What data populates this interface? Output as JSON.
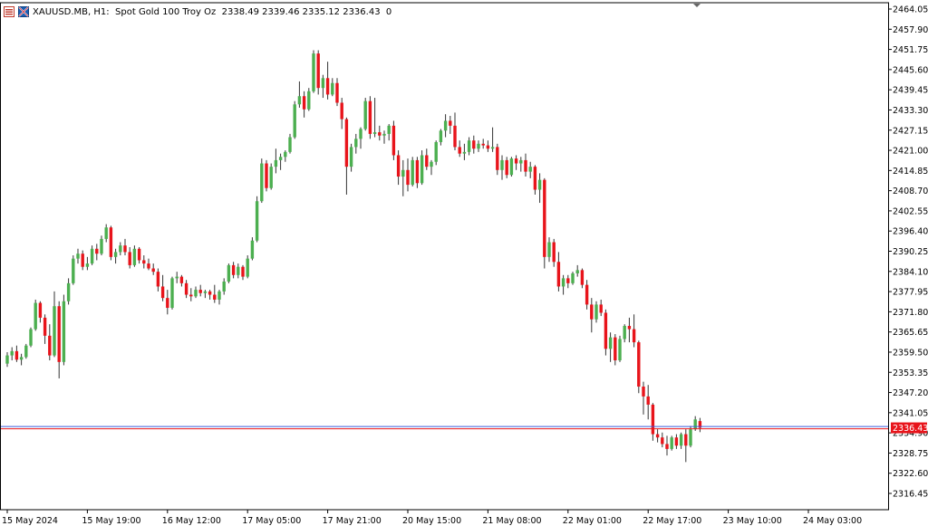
{
  "header": {
    "symbol": "XAUUSD.MB",
    "timeframe": "H1",
    "description": "Spot Gold 100 Troy Oz",
    "ohlc": "2338.49 2339.46 2335.12 2336.43",
    "volume": "0"
  },
  "colors": {
    "bull": "#4caf50",
    "bear": "#e8141b",
    "wick": "#333333",
    "price_line_red": "#e8141b",
    "price_line_blue": "#3b5bdb",
    "grid_axis": "#000000"
  },
  "icons": [
    "chart-list-icon",
    "symbol-flag-icon"
  ],
  "chart_data": {
    "type": "candlestick",
    "timeframe": "H1",
    "ylim": [
      2312.5,
      2465.0
    ],
    "grid": false,
    "current_price": 2336.43,
    "current_price_label": "2336.43",
    "ytick_labels": [
      "2464.05",
      "2457.90",
      "2451.75",
      "2445.60",
      "2439.45",
      "2433.30",
      "2427.15",
      "2421.00",
      "2414.85",
      "2408.70",
      "2402.55",
      "2396.40",
      "2390.25",
      "2384.10",
      "2377.95",
      "2371.80",
      "2365.65",
      "2359.50",
      "2353.35",
      "2347.20",
      "2341.05",
      "2334.90",
      "2328.75",
      "2322.60",
      "2316.45"
    ],
    "xtick_labels": [
      "15 May 2024",
      "15 May 19:00",
      "16 May 12:00",
      "17 May 05:00",
      "17 May 21:00",
      "20 May 15:00",
      "21 May 08:00",
      "22 May 01:00",
      "22 May 17:00",
      "23 May 10:00",
      "24 May 03:00"
    ],
    "xtick_bars": [
      0,
      17,
      34,
      51,
      68,
      85,
      102,
      119,
      136,
      153,
      170
    ],
    "ohlc": [
      [
        2356.0,
        2359.5,
        2355.0,
        2358.5
      ],
      [
        2358.5,
        2361.0,
        2357.0,
        2359.8
      ],
      [
        2359.8,
        2361.5,
        2356.5,
        2357.2
      ],
      [
        2357.2,
        2359.0,
        2355.5,
        2358.0
      ],
      [
        2358.0,
        2362.0,
        2357.5,
        2361.5
      ],
      [
        2361.5,
        2367.0,
        2361.0,
        2366.5
      ],
      [
        2366.5,
        2375.5,
        2366.0,
        2374.5
      ],
      [
        2374.5,
        2375.0,
        2368.5,
        2370.0
      ],
      [
        2370.0,
        2371.0,
        2362.0,
        2364.5
      ],
      [
        2364.5,
        2368.0,
        2357.0,
        2358.5
      ],
      [
        2358.5,
        2378.0,
        2358.0,
        2373.5
      ],
      [
        2373.5,
        2375.0,
        2351.5,
        2356.5
      ],
      [
        2356.5,
        2377.0,
        2355.5,
        2375.0
      ],
      [
        2375.0,
        2382.0,
        2374.0,
        2380.5
      ],
      [
        2380.5,
        2389.0,
        2380.0,
        2388.0
      ],
      [
        2388.0,
        2391.0,
        2386.5,
        2389.5
      ],
      [
        2389.5,
        2390.5,
        2384.5,
        2385.5
      ],
      [
        2385.5,
        2388.5,
        2384.5,
        2386.5
      ],
      [
        2386.5,
        2392.0,
        2386.0,
        2391.0
      ],
      [
        2391.0,
        2392.5,
        2387.5,
        2389.5
      ],
      [
        2389.5,
        2395.0,
        2389.0,
        2394.0
      ],
      [
        2394.0,
        2398.5,
        2393.0,
        2397.5
      ],
      [
        2397.5,
        2398.0,
        2387.5,
        2388.5
      ],
      [
        2388.5,
        2391.0,
        2386.5,
        2390.0
      ],
      [
        2390.0,
        2393.0,
        2389.0,
        2392.0
      ],
      [
        2392.0,
        2394.0,
        2389.0,
        2390.0
      ],
      [
        2390.0,
        2391.5,
        2385.0,
        2386.0
      ],
      [
        2386.0,
        2392.0,
        2385.5,
        2391.0
      ],
      [
        2391.0,
        2391.5,
        2386.5,
        2387.5
      ],
      [
        2387.5,
        2389.0,
        2385.0,
        2386.5
      ],
      [
        2386.5,
        2388.0,
        2384.5,
        2385.0
      ],
      [
        2385.0,
        2386.5,
        2383.0,
        2384.0
      ],
      [
        2384.0,
        2385.0,
        2378.0,
        2379.5
      ],
      [
        2379.5,
        2383.0,
        2375.0,
        2376.0
      ],
      [
        2376.0,
        2378.5,
        2371.0,
        2373.0
      ],
      [
        2373.0,
        2382.5,
        2372.5,
        2382.0
      ],
      [
        2382.0,
        2384.0,
        2380.5,
        2382.5
      ],
      [
        2382.5,
        2383.0,
        2379.5,
        2380.5
      ],
      [
        2380.5,
        2381.5,
        2376.0,
        2377.0
      ],
      [
        2377.0,
        2379.0,
        2375.0,
        2376.5
      ],
      [
        2376.5,
        2379.5,
        2376.0,
        2378.5
      ],
      [
        2378.5,
        2380.0,
        2376.5,
        2377.5
      ],
      [
        2377.5,
        2378.5,
        2376.0,
        2378.0
      ],
      [
        2378.0,
        2378.5,
        2375.5,
        2377.0
      ],
      [
        2377.0,
        2380.0,
        2374.5,
        2375.5
      ],
      [
        2375.5,
        2378.5,
        2374.0,
        2378.0
      ],
      [
        2378.0,
        2382.0,
        2377.0,
        2381.0
      ],
      [
        2381.0,
        2386.5,
        2380.5,
        2386.0
      ],
      [
        2386.0,
        2387.0,
        2382.0,
        2383.0
      ],
      [
        2383.0,
        2386.5,
        2382.0,
        2385.5
      ],
      [
        2385.5,
        2386.0,
        2381.5,
        2382.5
      ],
      [
        2382.5,
        2389.0,
        2382.0,
        2388.0
      ],
      [
        2388.0,
        2394.5,
        2387.5,
        2393.5
      ],
      [
        2393.5,
        2407.0,
        2393.0,
        2405.5
      ],
      [
        2405.5,
        2418.5,
        2405.0,
        2417.0
      ],
      [
        2417.0,
        2418.0,
        2408.5,
        2409.5
      ],
      [
        2409.5,
        2417.0,
        2409.0,
        2416.0
      ],
      [
        2416.0,
        2421.5,
        2414.0,
        2418.0
      ],
      [
        2418.0,
        2420.0,
        2415.0,
        2419.0
      ],
      [
        2419.0,
        2421.0,
        2417.5,
        2420.5
      ],
      [
        2420.5,
        2426.0,
        2420.0,
        2425.0
      ],
      [
        2425.0,
        2436.0,
        2424.5,
        2435.0
      ],
      [
        2435.0,
        2442.0,
        2434.0,
        2437.5
      ],
      [
        2437.5,
        2439.0,
        2431.0,
        2433.5
      ],
      [
        2433.5,
        2440.0,
        2433.0,
        2439.0
      ],
      [
        2439.0,
        2451.5,
        2438.5,
        2450.5
      ],
      [
        2450.5,
        2451.5,
        2438.0,
        2440.0
      ],
      [
        2440.0,
        2444.0,
        2437.0,
        2443.0
      ],
      [
        2443.0,
        2448.0,
        2436.5,
        2438.0
      ],
      [
        2438.0,
        2443.0,
        2437.5,
        2441.5
      ],
      [
        2441.5,
        2443.0,
        2434.5,
        2435.5
      ],
      [
        2435.5,
        2437.0,
        2427.5,
        2430.5
      ],
      [
        2430.5,
        2431.0,
        2407.5,
        2416.0
      ],
      [
        2416.0,
        2423.0,
        2414.5,
        2422.0
      ],
      [
        2422.0,
        2426.0,
        2420.0,
        2424.5
      ],
      [
        2424.5,
        2428.0,
        2421.5,
        2427.5
      ],
      [
        2427.5,
        2437.0,
        2427.0,
        2436.0
      ],
      [
        2436.0,
        2437.5,
        2424.5,
        2426.0
      ],
      [
        2426.0,
        2437.0,
        2425.0,
        2426.5
      ],
      [
        2426.5,
        2428.5,
        2424.0,
        2425.5
      ],
      [
        2425.5,
        2427.0,
        2423.0,
        2426.0
      ],
      [
        2426.0,
        2429.0,
        2424.0,
        2428.5
      ],
      [
        2428.5,
        2430.0,
        2418.0,
        2419.5
      ],
      [
        2419.5,
        2421.0,
        2410.5,
        2413.0
      ],
      [
        2413.0,
        2418.0,
        2407.0,
        2415.0
      ],
      [
        2415.0,
        2418.5,
        2408.5,
        2410.5
      ],
      [
        2410.5,
        2419.0,
        2410.0,
        2418.0
      ],
      [
        2418.0,
        2419.0,
        2409.5,
        2411.0
      ],
      [
        2411.0,
        2421.0,
        2410.5,
        2419.5
      ],
      [
        2419.5,
        2421.5,
        2415.0,
        2416.0
      ],
      [
        2416.0,
        2418.0,
        2413.5,
        2417.5
      ],
      [
        2417.5,
        2424.0,
        2416.5,
        2423.5
      ],
      [
        2423.5,
        2427.5,
        2422.5,
        2427.0
      ],
      [
        2427.0,
        2432.0,
        2425.0,
        2430.0
      ],
      [
        2430.0,
        2431.5,
        2426.0,
        2428.5
      ],
      [
        2428.5,
        2432.5,
        2421.0,
        2422.0
      ],
      [
        2422.0,
        2424.0,
        2419.0,
        2420.0
      ],
      [
        2420.0,
        2423.0,
        2418.0,
        2420.5
      ],
      [
        2420.5,
        2425.0,
        2419.5,
        2424.0
      ],
      [
        2424.0,
        2425.5,
        2420.0,
        2421.5
      ],
      [
        2421.5,
        2424.0,
        2420.5,
        2423.0
      ],
      [
        2423.0,
        2424.5,
        2421.5,
        2422.5
      ],
      [
        2422.5,
        2424.0,
        2420.5,
        2421.5
      ],
      [
        2421.5,
        2428.0,
        2420.5,
        2422.0
      ],
      [
        2422.0,
        2423.0,
        2413.5,
        2415.0
      ],
      [
        2415.0,
        2419.5,
        2412.0,
        2418.0
      ],
      [
        2418.0,
        2419.0,
        2412.5,
        2413.5
      ],
      [
        2413.5,
        2419.0,
        2413.0,
        2418.5
      ],
      [
        2418.5,
        2419.5,
        2415.0,
        2417.0
      ],
      [
        2417.0,
        2419.0,
        2414.5,
        2418.0
      ],
      [
        2418.0,
        2420.0,
        2413.0,
        2414.5
      ],
      [
        2414.5,
        2417.5,
        2412.5,
        2416.0
      ],
      [
        2416.0,
        2416.5,
        2407.5,
        2409.0
      ],
      [
        2409.0,
        2414.0,
        2405.0,
        2412.0
      ],
      [
        2412.0,
        2412.5,
        2385.0,
        2388.5
      ],
      [
        2388.5,
        2394.5,
        2387.0,
        2393.0
      ],
      [
        2393.0,
        2394.0,
        2385.5,
        2387.0
      ],
      [
        2387.0,
        2390.0,
        2378.0,
        2379.5
      ],
      [
        2379.5,
        2383.0,
        2377.0,
        2382.0
      ],
      [
        2382.0,
        2383.0,
        2379.0,
        2380.5
      ],
      [
        2380.5,
        2384.0,
        2380.0,
        2383.5
      ],
      [
        2383.5,
        2386.0,
        2382.5,
        2384.5
      ],
      [
        2384.5,
        2385.0,
        2379.0,
        2380.0
      ],
      [
        2380.0,
        2381.5,
        2372.5,
        2374.0
      ],
      [
        2374.0,
        2376.0,
        2365.5,
        2369.5
      ],
      [
        2369.5,
        2375.0,
        2368.5,
        2374.0
      ],
      [
        2374.0,
        2375.5,
        2370.5,
        2371.5
      ],
      [
        2371.5,
        2372.5,
        2358.5,
        2360.5
      ],
      [
        2360.5,
        2365.5,
        2356.5,
        2364.0
      ],
      [
        2364.0,
        2365.0,
        2355.5,
        2357.0
      ],
      [
        2357.0,
        2364.5,
        2356.5,
        2363.5
      ],
      [
        2363.5,
        2368.0,
        2362.5,
        2367.5
      ],
      [
        2367.5,
        2370.0,
        2362.5,
        2366.5
      ],
      [
        2366.5,
        2371.0,
        2361.0,
        2362.5
      ],
      [
        2362.5,
        2363.0,
        2347.0,
        2349.0
      ],
      [
        2349.0,
        2350.5,
        2340.5,
        2346.0
      ],
      [
        2346.0,
        2349.5,
        2339.0,
        2343.5
      ],
      [
        2343.5,
        2344.0,
        2332.5,
        2334.5
      ],
      [
        2334.5,
        2336.0,
        2332.0,
        2333.5
      ],
      [
        2333.5,
        2335.0,
        2330.5,
        2331.5
      ],
      [
        2331.5,
        2334.0,
        2328.0,
        2330.0
      ],
      [
        2330.0,
        2334.0,
        2329.5,
        2333.5
      ],
      [
        2333.5,
        2334.5,
        2330.0,
        2331.0
      ],
      [
        2331.0,
        2335.0,
        2330.0,
        2334.5
      ],
      [
        2334.5,
        2336.0,
        2326.0,
        2331.0
      ],
      [
        2331.0,
        2337.0,
        2330.5,
        2336.0
      ],
      [
        2336.0,
        2340.0,
        2335.5,
        2339.0
      ],
      [
        2338.49,
        2339.46,
        2335.12,
        2336.43
      ]
    ]
  }
}
